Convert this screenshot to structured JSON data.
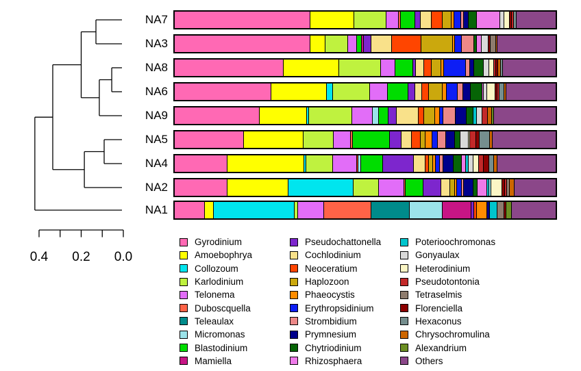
{
  "chart_data": {
    "type": "bar",
    "variant": "horizontal_stacked_relative_abundance_with_cluster_dendrogram",
    "title": "",
    "xlabel": "",
    "ylabel": "",
    "legend_position": "bottom",
    "legend_columns": 3,
    "samples": [
      "NA7",
      "NA3",
      "NA8",
      "NA6",
      "NA9",
      "NA5",
      "NA4",
      "NA2",
      "NA1"
    ],
    "taxa": [
      {
        "name": "Gyrodinium",
        "color": "#FF69B4"
      },
      {
        "name": "Amoebophrya",
        "color": "#FFFF00"
      },
      {
        "name": "Collozoum",
        "color": "#00E5EE"
      },
      {
        "name": "Karlodinium",
        "color": "#BFF23F"
      },
      {
        "name": "Telonema",
        "color": "#E26DF8"
      },
      {
        "name": "Duboscquella",
        "color": "#FF6347"
      },
      {
        "name": "Teleaulax",
        "color": "#008B8B"
      },
      {
        "name": "Micromonas",
        "color": "#9BE3EA"
      },
      {
        "name": "Blastodinium",
        "color": "#00DD00"
      },
      {
        "name": "Mamiella",
        "color": "#C71585"
      },
      {
        "name": "Pseudochattonella",
        "color": "#7D26CD"
      },
      {
        "name": "Cochlodinium",
        "color": "#F9E18A"
      },
      {
        "name": "Neoceratium",
        "color": "#FF4500"
      },
      {
        "name": "Haplozoon",
        "color": "#CBA80D"
      },
      {
        "name": "Phaeocystis",
        "color": "#FF8C00"
      },
      {
        "name": "Erythropsidinium",
        "color": "#0D1EF5"
      },
      {
        "name": "Strombidium",
        "color": "#EC8888"
      },
      {
        "name": "Prymnesium",
        "color": "#00008B"
      },
      {
        "name": "Chytriodinium",
        "color": "#066406"
      },
      {
        "name": "Rhizosphaera",
        "color": "#EE7AE9"
      },
      {
        "name": "Poterioochromonas",
        "color": "#00C5CD"
      },
      {
        "name": "Gonyaulax",
        "color": "#D9D9D9"
      },
      {
        "name": "Heterodinium",
        "color": "#FBF6C5"
      },
      {
        "name": "Pseudotontonia",
        "color": "#C32929"
      },
      {
        "name": "Tetraselmis",
        "color": "#8E7C6E"
      },
      {
        "name": "Florenciella",
        "color": "#8B0000"
      },
      {
        "name": "Hexaconus",
        "color": "#758E8E"
      },
      {
        "name": "Chrysochromulina",
        "color": "#CD6600"
      },
      {
        "name": "Alexandrium",
        "color": "#6B8E23"
      },
      {
        "name": "Others",
        "color": "#8B4789"
      }
    ],
    "bars": [
      {
        "sample": "NA7",
        "segments": [
          [
            "Gyrodinium",
            35.7
          ],
          [
            "Amoebophrya",
            11.4
          ],
          [
            "Karlodinium",
            8.4
          ],
          [
            "Telonema",
            3.4
          ],
          [
            "Duboscquella",
            0.4
          ],
          [
            "Blastodinium",
            3.9
          ],
          [
            "Pseudochattonella",
            1.3
          ],
          [
            "Cochlodinium",
            2.9
          ],
          [
            "Neoceratium",
            3.0
          ],
          [
            "Haplozoon",
            2.3
          ],
          [
            "Phaeocystis",
            0.7
          ],
          [
            "Erythropsidinium",
            1.8
          ],
          [
            "Strombidium",
            0.7
          ],
          [
            "Prymnesium",
            1.3
          ],
          [
            "Chytriodinium",
            2.1
          ],
          [
            "Rhizosphaera",
            6.1
          ],
          [
            "Gonyaulax",
            1.1
          ],
          [
            "Heterodinium",
            1.4
          ],
          [
            "Florenciella",
            0.7
          ],
          [
            "Pseudotontonia",
            0.4
          ],
          [
            "Hexaconus",
            0.7
          ],
          [
            "Others",
            10.3
          ]
        ]
      },
      {
        "sample": "NA3",
        "segments": [
          [
            "Gyrodinium",
            35.7
          ],
          [
            "Amoebophrya",
            3.9
          ],
          [
            "Karlodinium",
            5.9
          ],
          [
            "Telonema",
            2.3
          ],
          [
            "Blastodinium",
            1.3
          ],
          [
            "Mamiella",
            0.5
          ],
          [
            "Pseudochattonella",
            2.0
          ],
          [
            "Cochlodinium",
            5.4
          ],
          [
            "Neoceratium",
            7.7
          ],
          [
            "Haplozoon",
            8.4
          ],
          [
            "Phaeocystis",
            0.5
          ],
          [
            "Erythropsidinium",
            1.8
          ],
          [
            "Strombidium",
            3.2
          ],
          [
            "Chytriodinium",
            0.7
          ],
          [
            "Rhizosphaera",
            1.3
          ],
          [
            "Gonyaulax",
            1.8
          ],
          [
            "Florenciella",
            0.5
          ],
          [
            "Tetraselmis",
            1.4
          ],
          [
            "Chrysochromulina",
            0.5
          ],
          [
            "Others",
            15.2
          ]
        ]
      },
      {
        "sample": "NA8",
        "segments": [
          [
            "Gyrodinium",
            28.6
          ],
          [
            "Amoebophrya",
            14.6
          ],
          [
            "Karlodinium",
            10.9
          ],
          [
            "Telonema",
            3.9
          ],
          [
            "Blastodinium",
            4.6
          ],
          [
            "Pseudochattonella",
            0.7
          ],
          [
            "Cochlodinium",
            2.1
          ],
          [
            "Neoceratium",
            2.1
          ],
          [
            "Haplozoon",
            2.5
          ],
          [
            "Phaeocystis",
            0.7
          ],
          [
            "Erythropsidinium",
            5.7
          ],
          [
            "Strombidium",
            1.1
          ],
          [
            "Prymnesium",
            1.1
          ],
          [
            "Chytriodinium",
            2.5
          ],
          [
            "Gonyaulax",
            1.4
          ],
          [
            "Heterodinium",
            1.4
          ],
          [
            "Pseudotontonia",
            0.5
          ],
          [
            "Florenciella",
            0.5
          ],
          [
            "Chrysochromulina",
            0.7
          ],
          [
            "Hexaconus",
            0.5
          ],
          [
            "Others",
            13.9
          ]
        ]
      },
      {
        "sample": "NA6",
        "segments": [
          [
            "Gyrodinium",
            25.4
          ],
          [
            "Amoebophrya",
            14.5
          ],
          [
            "Collozoum",
            1.6
          ],
          [
            "Karlodinium",
            9.8
          ],
          [
            "Telonema",
            4.6
          ],
          [
            "Blastodinium",
            5.4
          ],
          [
            "Pseudochattonella",
            1.8
          ],
          [
            "Cochlodinium",
            1.8
          ],
          [
            "Neoceratium",
            1.8
          ],
          [
            "Haplozoon",
            3.6
          ],
          [
            "Phaeocystis",
            1.1
          ],
          [
            "Erythropsidinium",
            2.9
          ],
          [
            "Strombidium",
            1.4
          ],
          [
            "Prymnesium",
            2.1
          ],
          [
            "Chytriodinium",
            2.9
          ],
          [
            "Rhizosphaera",
            0.5
          ],
          [
            "Gonyaulax",
            0.9
          ],
          [
            "Heterodinium",
            2.1
          ],
          [
            "Florenciella",
            0.5
          ],
          [
            "Pseudotontonia",
            0.5
          ],
          [
            "Hexaconus",
            1.4
          ],
          [
            "Chrysochromulina",
            0.5
          ],
          [
            "Others",
            12.9
          ]
        ]
      },
      {
        "sample": "NA9",
        "segments": [
          [
            "Gyrodinium",
            22.3
          ],
          [
            "Amoebophrya",
            12.5
          ],
          [
            "Collozoum",
            0.4
          ],
          [
            "Karlodinium",
            11.4
          ],
          [
            "Telonema",
            5.4
          ],
          [
            "Micromonas",
            1.6
          ],
          [
            "Blastodinium",
            2.5
          ],
          [
            "Pseudochattonella",
            2.1
          ],
          [
            "Cochlodinium",
            5.9
          ],
          [
            "Neoceratium",
            1.3
          ],
          [
            "Haplozoon",
            2.9
          ],
          [
            "Phaeocystis",
            1.3
          ],
          [
            "Erythropsidinium",
            0.9
          ],
          [
            "Strombidium",
            3.2
          ],
          [
            "Prymnesium",
            3.0
          ],
          [
            "Chytriodinium",
            1.8
          ],
          [
            "Poterioochromonas",
            0.9
          ],
          [
            "Gonyaulax",
            1.4
          ],
          [
            "Pseudotontonia",
            1.4
          ],
          [
            "Chrysochromulina",
            1.1
          ],
          [
            "Alexandrium",
            0.5
          ],
          [
            "Others",
            16.2
          ]
        ]
      },
      {
        "sample": "NA5",
        "segments": [
          [
            "Gyrodinium",
            18.2
          ],
          [
            "Amoebophrya",
            15.7
          ],
          [
            "Karlodinium",
            7.9
          ],
          [
            "Telonema",
            4.5
          ],
          [
            "Duboscquella",
            0.5
          ],
          [
            "Blastodinium",
            9.6
          ],
          [
            "Pseudochattonella",
            3.2
          ],
          [
            "Cochlodinium",
            2.7
          ],
          [
            "Neoceratium",
            2.3
          ],
          [
            "Haplozoon",
            1.3
          ],
          [
            "Phaeocystis",
            1.8
          ],
          [
            "Erythropsidinium",
            1.3
          ],
          [
            "Strombidium",
            2.3
          ],
          [
            "Prymnesium",
            2.3
          ],
          [
            "Chytriodinium",
            1.4
          ],
          [
            "Gonyaulax",
            2.1
          ],
          [
            "Heterodinium",
            0.5
          ],
          [
            "Pseudotontonia",
            1.6
          ],
          [
            "Florenciella",
            0.9
          ],
          [
            "Hexaconus",
            2.7
          ],
          [
            "Chrysochromulina",
            0.7
          ],
          [
            "Others",
            16.5
          ]
        ]
      },
      {
        "sample": "NA4",
        "segments": [
          [
            "Gyrodinium",
            13.8
          ],
          [
            "Amoebophrya",
            20.2
          ],
          [
            "Collozoum",
            0.5
          ],
          [
            "Karlodinium",
            7.0
          ],
          [
            "Telonema",
            6.3
          ],
          [
            "Neoceratium",
            0.4
          ],
          [
            "Micromonas",
            0.7
          ],
          [
            "Blastodinium",
            5.7
          ],
          [
            "Pseudochattonella",
            8.2
          ],
          [
            "Cochlodinium",
            3.0
          ],
          [
            "Neoceratium",
            0.9
          ],
          [
            "Haplozoon",
            1.1
          ],
          [
            "Phaeocystis",
            0.7
          ],
          [
            "Erythropsidinium",
            1.1
          ],
          [
            "Strombidium",
            0.9
          ],
          [
            "Prymnesium",
            2.7
          ],
          [
            "Chytriodinium",
            2.1
          ],
          [
            "Rhizosphaera",
            1.1
          ],
          [
            "Poterioochromonas",
            0.7
          ],
          [
            "Gonyaulax",
            1.3
          ],
          [
            "Heterodinium",
            1.4
          ],
          [
            "Pseudotontonia",
            1.3
          ],
          [
            "Florenciella",
            1.4
          ],
          [
            "Hexaconus",
            1.4
          ],
          [
            "Chrysochromulina",
            0.9
          ],
          [
            "Others",
            15.2
          ]
        ]
      },
      {
        "sample": "NA2",
        "segments": [
          [
            "Gyrodinium",
            13.8
          ],
          [
            "Amoebophrya",
            16.1
          ],
          [
            "Collozoum",
            17.1
          ],
          [
            "Karlodinium",
            6.6
          ],
          [
            "Telonema",
            6.6
          ],
          [
            "Duboscquella",
            0.5
          ],
          [
            "Blastodinium",
            4.6
          ],
          [
            "Pseudochattonella",
            4.6
          ],
          [
            "Cochlodinium",
            2.5
          ],
          [
            "Haplozoon",
            1.1
          ],
          [
            "Phaeocystis",
            0.7
          ],
          [
            "Erythropsidinium",
            1.1
          ],
          [
            "Strombidium",
            0.7
          ],
          [
            "Prymnesium",
            2.5
          ],
          [
            "Chytriodinium",
            1.1
          ],
          [
            "Rhizosphaera",
            2.5
          ],
          [
            "Poterioochromonas",
            0.5
          ],
          [
            "Micromonas",
            0.5
          ],
          [
            "Heterodinium",
            2.9
          ],
          [
            "Florenciella",
            0.7
          ],
          [
            "Pseudotontonia",
            0.5
          ],
          [
            "Tetraselmis",
            0.7
          ],
          [
            "Chrysochromulina",
            1.3
          ],
          [
            "Others",
            10.8
          ]
        ]
      },
      {
        "sample": "NA1",
        "segments": [
          [
            "Gyrodinium",
            7.9
          ],
          [
            "Amoebophrya",
            2.3
          ],
          [
            "Collozoum",
            21.0
          ],
          [
            "Karlodinium",
            0.9
          ],
          [
            "Telonema",
            6.8
          ],
          [
            "Duboscquella",
            12.5
          ],
          [
            "Teleaulax",
            10.0
          ],
          [
            "Micromonas",
            8.5
          ],
          [
            "Mamiella",
            7.5
          ],
          [
            "Pseudochattonella",
            0.7
          ],
          [
            "Neoceratium",
            0.7
          ],
          [
            "Phaeocystis",
            2.7
          ],
          [
            "Prymnesium",
            0.7
          ],
          [
            "Poterioochromonas",
            2.1
          ],
          [
            "Tetraselmis",
            1.8
          ],
          [
            "Florenciella",
            0.5
          ],
          [
            "Alexandrium",
            1.4
          ],
          [
            "Others",
            11.4
          ]
        ]
      }
    ],
    "dendrogram": {
      "orientation": "left",
      "merges": [
        {
          "id": "n1",
          "a": "NA7",
          "b": "NA3",
          "height": 0.13
        },
        {
          "id": "n2",
          "a": "NA8",
          "b": "NA6",
          "height": 0.055
        },
        {
          "id": "n3",
          "a": "n2",
          "b": "NA9",
          "height": 0.114
        },
        {
          "id": "n4",
          "a": "n1",
          "b": "n3",
          "height": 0.2
        },
        {
          "id": "n5",
          "a": "NA5",
          "b": "NA4",
          "height": 0.091
        },
        {
          "id": "n6",
          "a": "n5",
          "b": "NA2",
          "height": 0.185
        },
        {
          "id": "n7",
          "a": "n4",
          "b": "n6",
          "height": 0.335
        },
        {
          "id": "n8",
          "a": "n7",
          "b": "NA1",
          "height": 0.42
        }
      ],
      "axis": {
        "ticks": [
          0.4,
          0.3,
          0.2,
          0.1,
          0.0
        ],
        "labeled_ticks": [
          0.4,
          0.2,
          0.0
        ],
        "tick_labels": [
          "0.4",
          "0.2",
          "0.0"
        ],
        "range": [
          0.4,
          0.0
        ]
      }
    },
    "legend_columns_content": [
      [
        "Gyrodinium",
        "Amoebophrya",
        "Collozoum",
        "Karlodinium",
        "Telonema",
        "Duboscquella",
        "Teleaulax",
        "Micromonas",
        "Blastodinium",
        "Mamiella"
      ],
      [
        "Pseudochattonella",
        "Cochlodinium",
        "Neoceratium",
        "Haplozoon",
        "Phaeocystis",
        "Erythropsidinium",
        "Strombidium",
        "Prymnesium",
        "Chytriodinium",
        "Rhizosphaera"
      ],
      [
        "Poterioochromonas",
        "Gonyaulax",
        "Heterodinium",
        "Pseudotontonia",
        "Tetraselmis",
        "Florenciella",
        "Hexaconus",
        "Chrysochromulina",
        "Alexandrium",
        "Others"
      ]
    ]
  }
}
